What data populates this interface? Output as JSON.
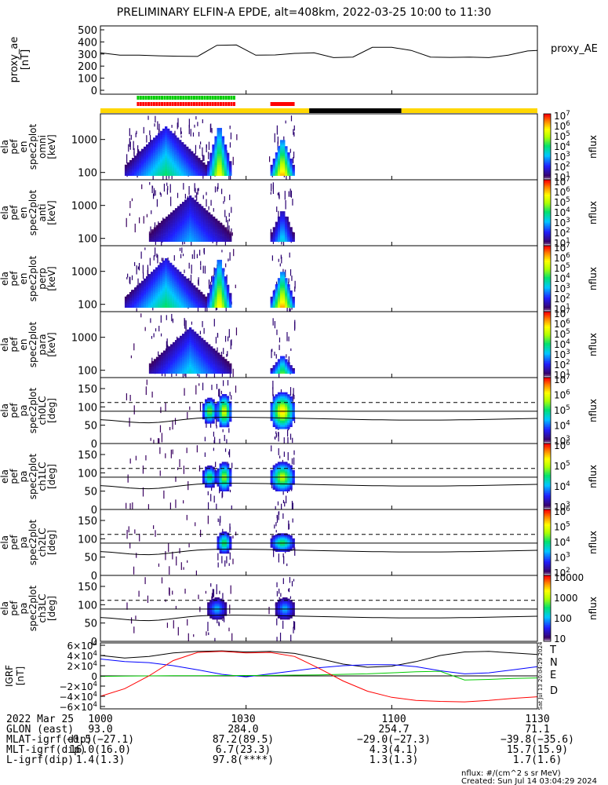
{
  "title": "PRELIMINARY ELFIN-A EPDE, alt=408km, 2022-03-25 10:00 to 11:30",
  "chart_data": [
    {
      "type": "line",
      "name": "proxy_ae",
      "ylabel": [
        "proxy_ae",
        "[nT]"
      ],
      "legend": "proxy_AE",
      "ylim": [
        0,
        500
      ],
      "yticks": [
        0,
        100,
        200,
        300,
        400,
        500
      ],
      "x_minutes": [
        0,
        4,
        8,
        12,
        16,
        20,
        24,
        28,
        32,
        36,
        40,
        44,
        48,
        52,
        56,
        60,
        64,
        68,
        72,
        76,
        80,
        84,
        88,
        90
      ],
      "values": [
        310,
        290,
        290,
        285,
        282,
        280,
        372,
        375,
        290,
        292,
        305,
        310,
        270,
        275,
        355,
        355,
        330,
        275,
        272,
        275,
        270,
        290,
        325,
        330
      ]
    },
    {
      "type": "bar",
      "name": "status-bars",
      "segments": [
        {
          "row": "green",
          "start_min": 7.5,
          "end_min": 27.5,
          "style": "dashed",
          "color": "#00cc00"
        },
        {
          "row": "red-top",
          "start_min": 7.5,
          "end_min": 27.5,
          "style": "dashed",
          "color": "#ff0000"
        },
        {
          "row": "red-top",
          "start_min": 35,
          "end_min": 40,
          "style": "solid",
          "color": "#ff0000"
        },
        {
          "row": "base",
          "start_min": 0,
          "end_min": 43,
          "color": "#ffd700"
        },
        {
          "row": "base",
          "start_min": 43,
          "end_min": 62,
          "color": "#000000"
        },
        {
          "row": "base",
          "start_min": 62,
          "end_min": 90,
          "color": "#ffd700"
        }
      ]
    },
    {
      "type": "heatmap",
      "name": "spec_omni",
      "ylabel": [
        "ela",
        "pef",
        "en",
        "spec2plot",
        "omni",
        "[keV]"
      ],
      "yscale": "log",
      "yticks": [
        100,
        1000
      ],
      "cbar_ticks": [
        "10^1",
        "10^2",
        "10^3",
        "10^4",
        "10^5",
        "10^6",
        "10^7"
      ],
      "cbar_label": "nflux",
      "bursts": [
        {
          "start_min": 5,
          "end_min": 22,
          "emin": 80,
          "emax": 2500,
          "peak": 3.8
        },
        {
          "start_min": 22,
          "end_min": 27,
          "emin": 80,
          "emax": 3000,
          "peak": 5.8
        },
        {
          "start_min": 35,
          "end_min": 40,
          "emin": 80,
          "emax": 1200,
          "peak": 6.5
        }
      ]
    },
    {
      "type": "heatmap",
      "name": "spec_anti",
      "ylabel": [
        "ela",
        "pef",
        "en",
        "spec2plot",
        "anti",
        "[keV]"
      ],
      "yscale": "log",
      "yticks": [
        100,
        1000
      ],
      "cbar_ticks": [
        "10^1",
        "10^2",
        "10^3",
        "10^4",
        "10^5",
        "10^6",
        "10^7"
      ],
      "cbar_label": "nflux",
      "bursts": [
        {
          "start_min": 10,
          "end_min": 27,
          "emin": 80,
          "emax": 2000,
          "peak": 2.6
        },
        {
          "start_min": 35,
          "end_min": 40,
          "emin": 80,
          "emax": 800,
          "peak": 3.2
        }
      ]
    },
    {
      "type": "heatmap",
      "name": "spec_perp",
      "ylabel": [
        "ela",
        "pef",
        "en",
        "spec2plot",
        "perp",
        "[keV]"
      ],
      "yscale": "log",
      "yticks": [
        100,
        1000
      ],
      "cbar_ticks": [
        "10^1",
        "10^2",
        "10^3",
        "10^4",
        "10^5",
        "10^6",
        "10^7"
      ],
      "cbar_label": "nflux",
      "bursts": [
        {
          "start_min": 5,
          "end_min": 22,
          "emin": 80,
          "emax": 2500,
          "peak": 3.8
        },
        {
          "start_min": 22,
          "end_min": 27,
          "emin": 80,
          "emax": 3000,
          "peak": 6.0
        },
        {
          "start_min": 35,
          "end_min": 40,
          "emin": 80,
          "emax": 1200,
          "peak": 6.6
        }
      ]
    },
    {
      "type": "heatmap",
      "name": "spec_para",
      "ylabel": [
        "ela",
        "pef",
        "en",
        "spec2plot",
        "para",
        "[keV]"
      ],
      "yscale": "log",
      "yticks": [
        100,
        1000
      ],
      "cbar_ticks": [
        "10^1",
        "10^2",
        "10^3",
        "10^4",
        "10^5",
        "10^6",
        "10^7"
      ],
      "cbar_label": "nflux",
      "bursts": [
        {
          "start_min": 10,
          "end_min": 27,
          "emin": 80,
          "emax": 2000,
          "peak": 3.0
        },
        {
          "start_min": 35,
          "end_min": 40,
          "emin": 80,
          "emax": 300,
          "peak": 4.5
        }
      ]
    },
    {
      "type": "heatmap",
      "name": "pa_ch0LC",
      "ylabel": [
        "ela",
        "pef",
        "pa",
        "spec2plot",
        "ch0LC",
        "[deg]"
      ],
      "ylim": [
        0,
        180
      ],
      "yticks": [
        0,
        50,
        100,
        150
      ],
      "cbar_ticks": [
        "10^3",
        "10^4",
        "10^5",
        "10^6",
        "10^7"
      ],
      "cbar_label": "nflux",
      "bursts": [
        {
          "start_min": 21,
          "end_min": 24,
          "center": 90,
          "halfwidth": 35,
          "peak": 4.8
        },
        {
          "start_min": 24,
          "end_min": 27,
          "center": 90,
          "halfwidth": 45,
          "peak": 5.6
        },
        {
          "start_min": 35,
          "end_min": 40,
          "center": 90,
          "halfwidth": 50,
          "peak": 6.2
        }
      ]
    },
    {
      "type": "heatmap",
      "name": "pa_ch1LC",
      "ylabel": [
        "ela",
        "pef",
        "pa",
        "spec2plot",
        "ch1LC",
        "[deg]"
      ],
      "ylim": [
        0,
        180
      ],
      "yticks": [
        0,
        50,
        100,
        150
      ],
      "cbar_ticks": [
        "10^3",
        "10^4",
        "10^5",
        "10^6"
      ],
      "cbar_label": "nflux",
      "bursts": [
        {
          "start_min": 21,
          "end_min": 24,
          "center": 90,
          "halfwidth": 30,
          "peak": 4.2
        },
        {
          "start_min": 24,
          "end_min": 27,
          "center": 90,
          "halfwidth": 40,
          "peak": 5.0
        },
        {
          "start_min": 35,
          "end_min": 40,
          "center": 90,
          "halfwidth": 40,
          "peak": 5.3
        }
      ]
    },
    {
      "type": "heatmap",
      "name": "pa_ch2LC",
      "ylabel": [
        "ela",
        "pef",
        "pa",
        "spec2plot",
        "ch2LC",
        "[deg]"
      ],
      "ylim": [
        0,
        180
      ],
      "yticks": [
        0,
        50,
        100,
        150
      ],
      "cbar_ticks": [
        "10^2",
        "10^3",
        "10^4",
        "10^5",
        "10^6"
      ],
      "cbar_label": "nflux",
      "bursts": [
        {
          "start_min": 24,
          "end_min": 27,
          "center": 90,
          "halfwidth": 30,
          "peak": 4.3
        },
        {
          "start_min": 35,
          "end_min": 40,
          "center": 90,
          "halfwidth": 25,
          "peak": 4.2
        }
      ]
    },
    {
      "type": "heatmap",
      "name": "pa_ch3LC",
      "ylabel": [
        "ela",
        "pef",
        "pa",
        "spec2plot",
        "ch3LC",
        "[deg]"
      ],
      "ylim": [
        0,
        180
      ],
      "yticks": [
        0,
        50,
        100,
        150
      ],
      "cbar_ticks": [
        "10",
        "100",
        "1000",
        "10000"
      ],
      "cbar_label": "nflux",
      "bursts": [
        {
          "start_min": 22,
          "end_min": 26,
          "center": 90,
          "halfwidth": 30,
          "peak": 2.8
        },
        {
          "start_min": 36,
          "end_min": 40,
          "center": 90,
          "halfwidth": 30,
          "peak": 2.8
        }
      ]
    },
    {
      "type": "line",
      "name": "igrf",
      "ylabel": [
        "IGRF",
        "[nT]"
      ],
      "ylim": [
        -60000,
        60000
      ],
      "yticks": [
        "6×10^4",
        "4×10^4",
        "2×10^4",
        "0",
        "−2×10^4",
        "−4×10^4",
        "−6×10^4"
      ],
      "x_minutes": [
        0,
        5,
        10,
        15,
        20,
        25,
        30,
        35,
        40,
        45,
        50,
        55,
        60,
        65,
        70,
        75,
        80,
        85,
        90
      ],
      "series": [
        {
          "name": "T",
          "color": "#000000",
          "values": [
            40000,
            35000,
            38000,
            45000,
            48000,
            49000,
            47000,
            48000,
            44000,
            34000,
            23000,
            17000,
            19000,
            28000,
            40000,
            47000,
            48000,
            45000,
            42000
          ]
        },
        {
          "name": "N",
          "color": "#0000ff",
          "values": [
            33000,
            28000,
            26000,
            20000,
            12000,
            3000,
            -2000,
            4000,
            10000,
            16000,
            20000,
            22000,
            22000,
            18000,
            10000,
            4000,
            6000,
            12000,
            18000
          ]
        },
        {
          "name": "E",
          "color": "#00cc00",
          "values": [
            -1000,
            -500,
            0,
            300,
            500,
            600,
            800,
            1000,
            1500,
            2000,
            3000,
            4000,
            6000,
            8000,
            9000,
            -8000,
            -7000,
            -5000,
            -4000
          ]
        },
        {
          "name": "D",
          "color": "#ff0000",
          "values": [
            -40000,
            -25000,
            0,
            30000,
            46000,
            48000,
            45000,
            46000,
            38000,
            15000,
            -10000,
            -30000,
            -42000,
            -48000,
            -50000,
            -51000,
            -48000,
            -44000,
            -41000
          ]
        }
      ]
    }
  ],
  "x_axis": {
    "tick_labels": [
      "1000",
      "1030",
      "1100",
      "1130"
    ],
    "tick_minutes": [
      0,
      30,
      60,
      90
    ],
    "rows": [
      {
        "label": "2022 Mar 25",
        "values": [
          "1000",
          "1030",
          "1100",
          "1130"
        ]
      },
      {
        "label": "GLON (east)",
        "values": [
          "93.0",
          "284.0",
          "254.7",
          "71.1"
        ]
      },
      {
        "label": "MLAT-igrf(dip)",
        "values": [
          "−0.5(−27.1)",
          "87.2(89.5)",
          "−29.0(−27.3)",
          "−39.8(−35.6)"
        ]
      },
      {
        "label": "MLT-igrf(dip)",
        "values": [
          "16.0(16.0)",
          "6.7(23.3)",
          "4.3(4.1)",
          "15.7(15.9)"
        ]
      },
      {
        "label": "L-igrf(dip)",
        "values": [
          "1.4(1.3)",
          "97.8(****)",
          "1.3(1.3)",
          "1.7(1.6)"
        ]
      }
    ]
  },
  "footer": {
    "units": "nflux: #/(cm^2 s sr MeV)",
    "created": "Created: Sun Jul 14 03:04:29 2024",
    "side_stamp": "Sat Jul 13 20:04:29 2024"
  }
}
